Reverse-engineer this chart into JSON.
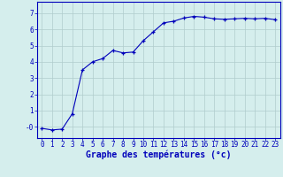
{
  "x": [
    0,
    1,
    2,
    3,
    4,
    5,
    6,
    7,
    8,
    9,
    10,
    11,
    12,
    13,
    14,
    15,
    16,
    17,
    18,
    19,
    20,
    21,
    22,
    23
  ],
  "y": [
    -0.1,
    -0.2,
    -0.15,
    0.8,
    3.5,
    4.0,
    4.2,
    4.7,
    4.55,
    4.6,
    5.3,
    5.85,
    6.4,
    6.5,
    6.7,
    6.8,
    6.75,
    6.65,
    6.62,
    6.65,
    6.68,
    6.65,
    6.68,
    6.6
  ],
  "line_color": "#0000bb",
  "marker": "+",
  "marker_size": 3,
  "xlabel": "Graphe des températures (°c)",
  "ylim": [
    -0.7,
    7.7
  ],
  "xlim": [
    -0.5,
    23.5
  ],
  "yticks": [
    0,
    1,
    2,
    3,
    4,
    5,
    6,
    7
  ],
  "ytick_labels": [
    "-0",
    "1",
    "2",
    "3",
    "4",
    "5",
    "6",
    "7"
  ],
  "xticks": [
    0,
    1,
    2,
    3,
    4,
    5,
    6,
    7,
    8,
    9,
    10,
    11,
    12,
    13,
    14,
    15,
    16,
    17,
    18,
    19,
    20,
    21,
    22,
    23
  ],
  "background_color": "#d5eeed",
  "grid_color": "#b0cccc",
  "axis_color": "#0000bb",
  "label_color": "#0000bb",
  "xlabel_fontsize": 7,
  "tick_fontsize": 5.5
}
